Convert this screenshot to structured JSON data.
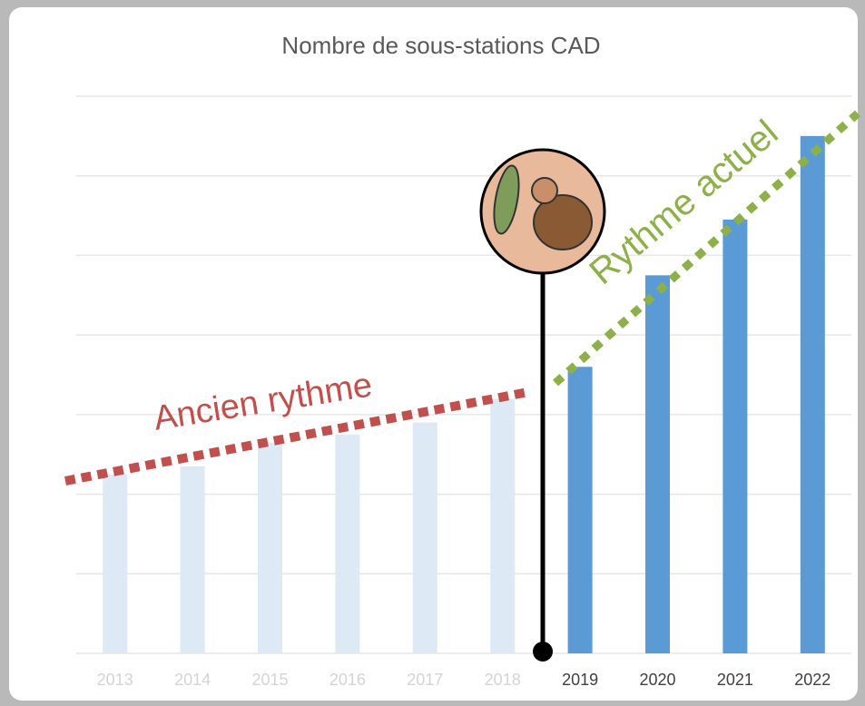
{
  "chart_data": {
    "type": "bar",
    "title": "Nombre de sous-stations CAD",
    "categories": [
      "2013",
      "2014",
      "2015",
      "2016",
      "2017",
      "2018",
      "2019",
      "2020",
      "2021",
      "2022"
    ],
    "values": [
      2.25,
      2.35,
      2.65,
      2.75,
      2.9,
      3.2,
      3.6,
      4.75,
      5.45,
      6.5
    ],
    "colors": [
      "#dde9f5",
      "#dde9f5",
      "#dde9f5",
      "#dde9f5",
      "#dde9f5",
      "#dde9f5",
      "#5b9bd5",
      "#5b9bd5",
      "#5b9bd5",
      "#5b9bd5"
    ],
    "label_colors": [
      "#d4d4d4",
      "#d4d4d4",
      "#d4d4d4",
      "#d4d4d4",
      "#d4d4d4",
      "#d4d4d4",
      "#404040",
      "#404040",
      "#404040",
      "#404040"
    ],
    "ylim": [
      0,
      7
    ],
    "yticks": [
      0,
      1,
      2,
      3,
      4,
      5,
      6,
      7
    ],
    "grid": true,
    "annotations": [
      "Ancien rythme",
      "Rythme actuel"
    ]
  }
}
